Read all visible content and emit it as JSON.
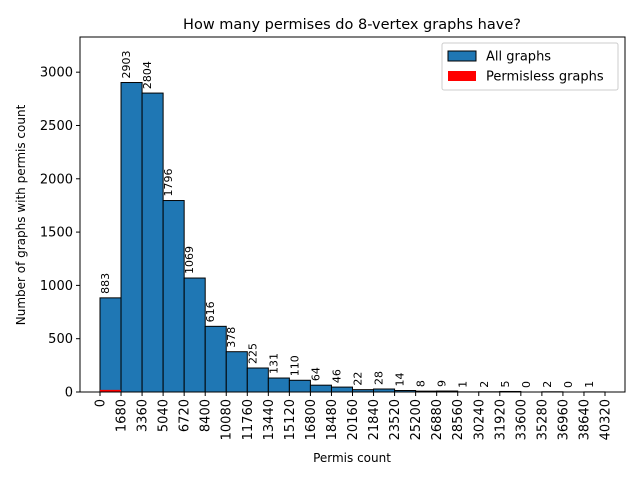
{
  "chart_data": {
    "type": "bar",
    "title": "How many permises do 8-vertex graphs have?",
    "xlabel": "Permis count",
    "ylabel": "Number of graphs with permis count",
    "ylim": [
      0,
      3330
    ],
    "yticks": [
      0,
      500,
      1000,
      1500,
      2000,
      2500,
      3000
    ],
    "xticks": [
      0,
      1680,
      3360,
      5040,
      6720,
      8400,
      10080,
      11760,
      13440,
      15120,
      16800,
      18480,
      20160,
      21840,
      23520,
      25200,
      26880,
      28560,
      30240,
      31920,
      33600,
      35280,
      36960,
      38640,
      40320
    ],
    "bin_width": 1680,
    "legend_position": "top-right",
    "series": [
      {
        "name": "All graphs",
        "color": "#1f77b4",
        "values": [
          883,
          2903,
          2804,
          1796,
          1069,
          616,
          378,
          225,
          131,
          110,
          64,
          46,
          22,
          28,
          14,
          8,
          9,
          1,
          2,
          5,
          0,
          2,
          0,
          1
        ]
      },
      {
        "name": "Permisless graphs",
        "color": "#ff0000",
        "values": [
          20,
          0,
          0,
          0,
          0,
          0,
          0,
          0,
          0,
          0,
          0,
          0,
          0,
          0,
          0,
          0,
          0,
          0,
          0,
          0,
          0,
          0,
          0,
          0
        ]
      }
    ]
  }
}
